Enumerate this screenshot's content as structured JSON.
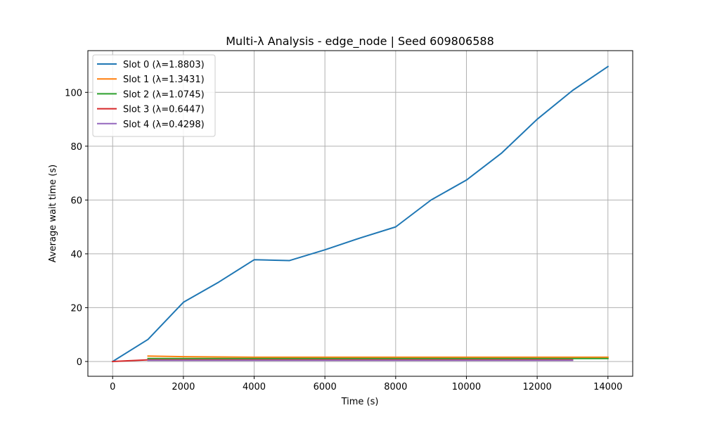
{
  "chart_data": {
    "type": "line",
    "title": "Multi-λ Analysis - edge_node | Seed 609806588",
    "xlabel": "Time (s)",
    "ylabel": "Average wait time (s)",
    "xlim": [
      -700,
      14700
    ],
    "ylim": [
      -5.5,
      115.5
    ],
    "xticks": [
      0,
      2000,
      4000,
      6000,
      8000,
      10000,
      12000,
      14000
    ],
    "yticks": [
      0,
      20,
      40,
      60,
      80,
      100
    ],
    "grid": true,
    "legend_position": "top-left",
    "series": [
      {
        "name": "Slot 0 (λ=1.8803)",
        "color": "#1f77b4",
        "x": [
          0,
          1000,
          2000,
          3000,
          4000,
          5000,
          6000,
          7000,
          8000,
          9000,
          10000,
          11000,
          12000,
          13000,
          14000
        ],
        "y": [
          0,
          8.2,
          22.0,
          29.5,
          37.8,
          37.5,
          41.5,
          45.9,
          50.0,
          60.0,
          67.4,
          77.5,
          90.0,
          100.7,
          109.6
        ]
      },
      {
        "name": "Slot 1 (λ=1.3431)",
        "color": "#ff7f0e",
        "x": [
          1000,
          2000,
          3000,
          4000,
          5000,
          6000,
          7000,
          8000,
          9000,
          10000,
          11000,
          12000,
          13000,
          14000
        ],
        "y": [
          2.0,
          1.8,
          1.7,
          1.6,
          1.6,
          1.6,
          1.6,
          1.6,
          1.6,
          1.6,
          1.6,
          1.6,
          1.6,
          1.6
        ]
      },
      {
        "name": "Slot 2 (λ=1.0745)",
        "color": "#2ca02c",
        "x": [
          1000,
          2000,
          3000,
          4000,
          5000,
          6000,
          7000,
          8000,
          9000,
          10000,
          11000,
          12000,
          13000,
          14000
        ],
        "y": [
          1.1,
          1.1,
          1.1,
          1.1,
          1.1,
          1.1,
          1.1,
          1.1,
          1.1,
          1.1,
          1.1,
          1.1,
          1.1,
          1.1
        ]
      },
      {
        "name": "Slot 3 (λ=0.6447)",
        "color": "#d62728",
        "x": [
          0,
          1000,
          2000,
          3000,
          4000,
          5000,
          6000,
          7000,
          8000,
          9000,
          10000,
          11000,
          12000,
          13000
        ],
        "y": [
          0,
          0.6,
          0.6,
          0.6,
          0.6,
          0.6,
          0.6,
          0.6,
          0.6,
          0.6,
          0.6,
          0.6,
          0.6,
          0.6
        ]
      },
      {
        "name": "Slot 4 (λ=0.4298)",
        "color": "#9467bd",
        "x": [
          1000,
          2000,
          3000,
          4000,
          5000,
          6000,
          7000,
          8000,
          9000,
          10000,
          11000,
          12000,
          13000
        ],
        "y": [
          0.4,
          0.4,
          0.4,
          0.4,
          0.4,
          0.4,
          0.4,
          0.4,
          0.4,
          0.4,
          0.4,
          0.4,
          0.4
        ]
      }
    ]
  }
}
